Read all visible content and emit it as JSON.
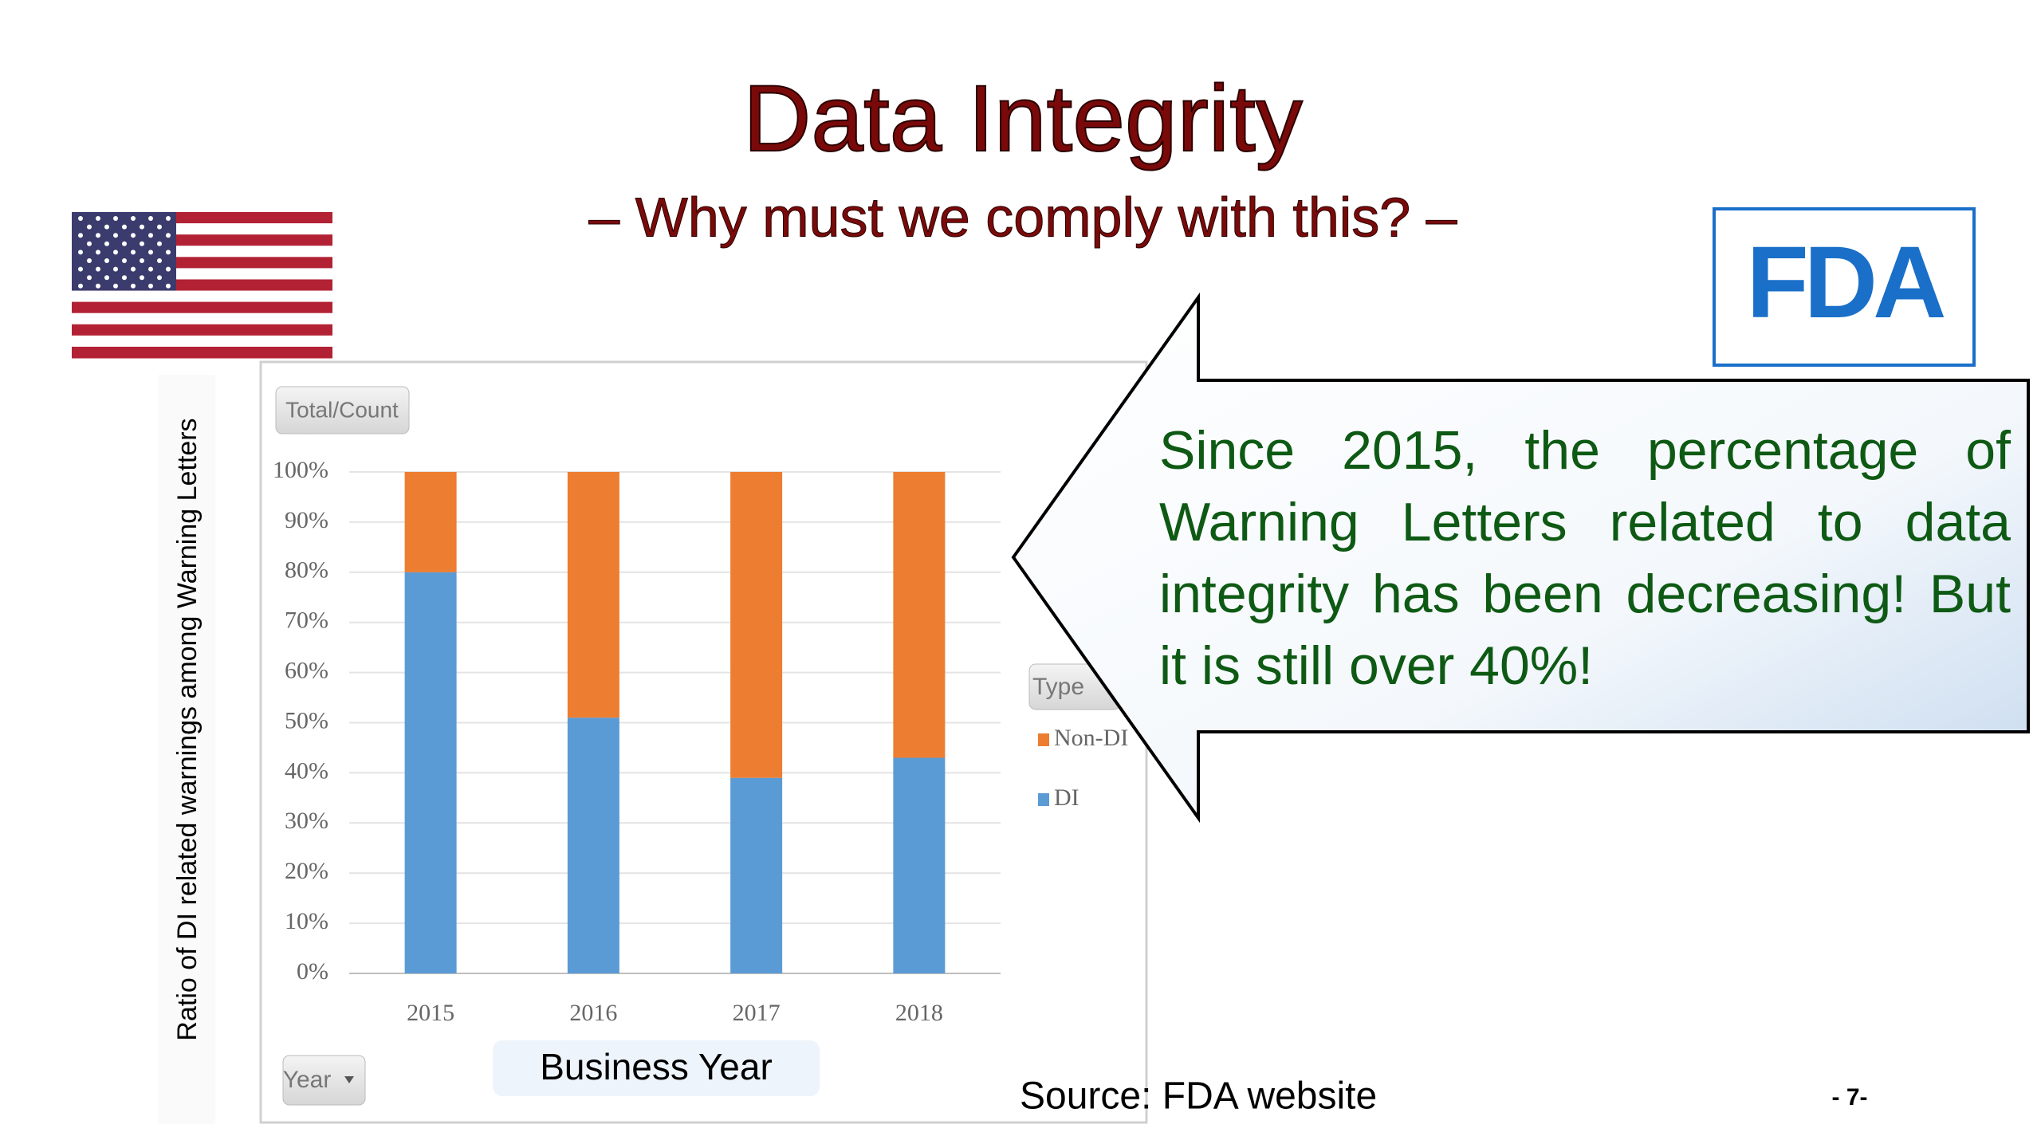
{
  "slide": {
    "title": "Data Integrity",
    "subtitle": "– Why must we comply with this? –",
    "logo": "FDA",
    "callout": "Since 2015, the percentage of Warning Letters related to data integrity has been decreasing! But it is still over 40%!",
    "source": "Source: FDA website",
    "page_number": "- 7-"
  },
  "chart_data": {
    "type": "stacked_bar",
    "y_label": "Ratio of DI related warnings among Warning Letters",
    "x_label": "Business Year",
    "value_button": "Total/Count",
    "axis_button": "Year",
    "legend_title": "Type",
    "categories": [
      "2015",
      "2016",
      "2017",
      "2018"
    ],
    "series": [
      {
        "name": "DI",
        "color": "#5b9bd5",
        "values": [
          80,
          51,
          39,
          43
        ]
      },
      {
        "name": "Non-DI",
        "color": "#ed7d31",
        "values": [
          20,
          49,
          61,
          57
        ]
      }
    ],
    "ylim": [
      0,
      100
    ],
    "yticks": [
      {
        "value": 0,
        "label": "0%"
      },
      {
        "value": 10,
        "label": "10%"
      },
      {
        "value": 20,
        "label": "20%"
      },
      {
        "value": 30,
        "label": "30%"
      },
      {
        "value": 40,
        "label": "40%"
      },
      {
        "value": 50,
        "label": "50%"
      },
      {
        "value": 60,
        "label": "60%"
      },
      {
        "value": 70,
        "label": "70%"
      },
      {
        "value": 80,
        "label": "80%"
      },
      {
        "value": 90,
        "label": "90%"
      },
      {
        "value": 100,
        "label": "100%"
      }
    ],
    "grid": true
  }
}
